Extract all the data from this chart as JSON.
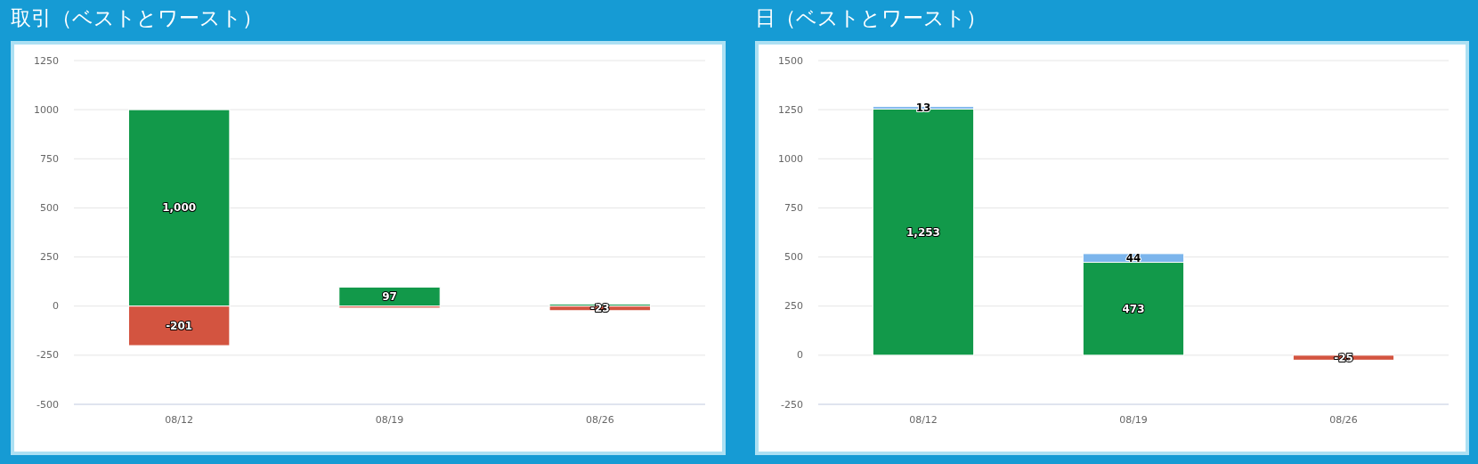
{
  "chart_data": [
    {
      "type": "bar",
      "title": "取引（ベストとワースト）",
      "categories": [
        "08/12",
        "08/19",
        "08/26"
      ],
      "stacked": true,
      "series": [
        {
          "color": "#12994a",
          "values": [
            1000,
            97,
            10
          ],
          "value_labels": [
            "1,000",
            "97",
            null
          ]
        },
        {
          "color": "#d35440",
          "values": [
            -201,
            -10,
            -23
          ],
          "value_labels": [
            "-201",
            null,
            "-23"
          ]
        }
      ],
      "ylim": [
        -500,
        1250
      ],
      "yticks": [
        -500,
        -250,
        0,
        250,
        500,
        750,
        1000,
        1250
      ],
      "grid": "y"
    },
    {
      "type": "bar",
      "title": "日（ベストとワースト）",
      "categories": [
        "08/12",
        "08/19",
        "08/26"
      ],
      "stacked": true,
      "series": [
        {
          "color": "#12994a",
          "values": [
            1253,
            473,
            null
          ],
          "value_labels": [
            "1,253",
            "473",
            null
          ]
        },
        {
          "color": "#7cb5ec",
          "values": [
            13,
            44,
            null
          ],
          "value_labels": [
            "13",
            "44",
            null
          ]
        },
        {
          "color": "#d35440",
          "values": [
            null,
            null,
            -25
          ],
          "value_labels": [
            null,
            null,
            "-25"
          ]
        }
      ],
      "ylim": [
        -250,
        1500
      ],
      "yticks": [
        -250,
        0,
        250,
        500,
        750,
        1000,
        1250,
        1500
      ],
      "grid": "y"
    }
  ]
}
